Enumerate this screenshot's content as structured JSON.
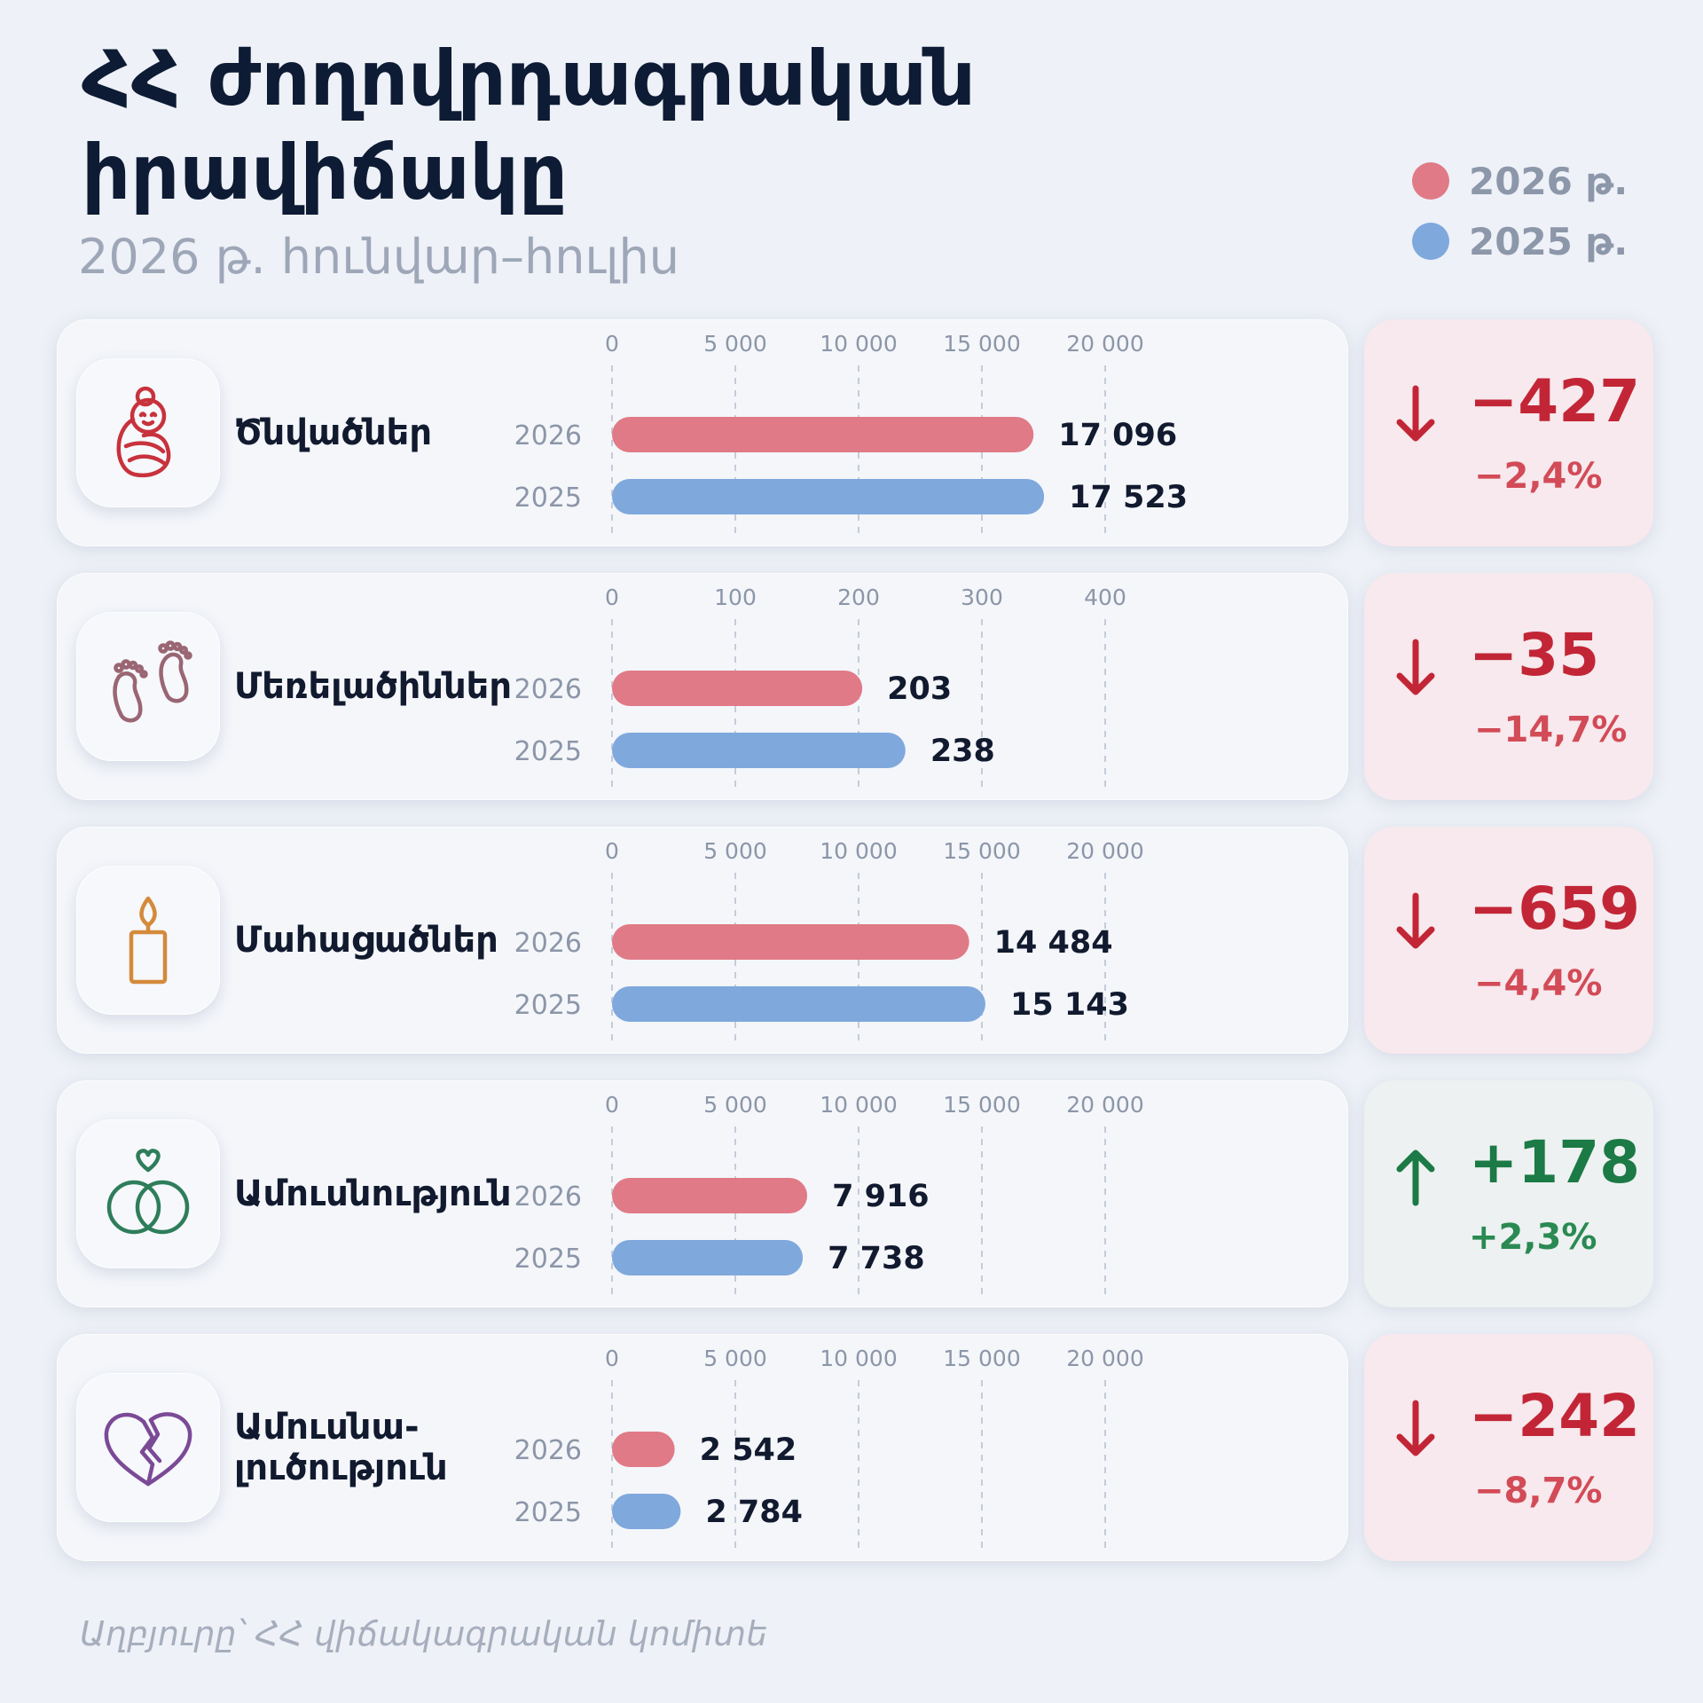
{
  "title": "ՀՀ ժողովրդագրական իրավիճակը",
  "subtitle": "2026 թ. հունվար–հուլիս",
  "legend": [
    {
      "label": "2026 թ.",
      "color": "#e07a86"
    },
    {
      "label": "2025 թ.",
      "color": "#7fa8dd"
    }
  ],
  "colors": {
    "y2026": "#e07a86",
    "y2025": "#7fa8dd",
    "negative": "#c22636",
    "positive": "#1b7a45"
  },
  "source": "Աղբյուրը՝ ՀՀ վիճակագրական կոմիտե",
  "chart_data": [
    {
      "type": "bar",
      "orientation": "horizontal",
      "category": "Ծնվածներ",
      "icon": "swaddled-baby-icon",
      "ticks": [
        "0",
        "5 000",
        "10 000",
        "15 000",
        "20 000"
      ],
      "xlim": [
        0,
        20000
      ],
      "series": [
        {
          "year": "2026",
          "value": 17096,
          "label": "17 096"
        },
        {
          "year": "2025",
          "value": 17523,
          "label": "17 523"
        }
      ],
      "change": {
        "direction": "down",
        "abs": "−427",
        "pct": "−2,4%"
      }
    },
    {
      "type": "bar",
      "orientation": "horizontal",
      "category": "Մեռելածիններ",
      "icon": "footprints-icon",
      "ticks": [
        "0",
        "100",
        "200",
        "300",
        "400"
      ],
      "xlim": [
        0,
        400
      ],
      "series": [
        {
          "year": "2026",
          "value": 203,
          "label": "203"
        },
        {
          "year": "2025",
          "value": 238,
          "label": "238"
        }
      ],
      "change": {
        "direction": "down",
        "abs": "−35",
        "pct": "−14,7%"
      }
    },
    {
      "type": "bar",
      "orientation": "horizontal",
      "category": "Մահացածներ",
      "icon": "candle-icon",
      "ticks": [
        "0",
        "5 000",
        "10 000",
        "15 000",
        "20 000"
      ],
      "xlim": [
        0,
        20000
      ],
      "series": [
        {
          "year": "2026",
          "value": 14484,
          "label": "14 484"
        },
        {
          "year": "2025",
          "value": 15143,
          "label": "15 143"
        }
      ],
      "change": {
        "direction": "down",
        "abs": "−659",
        "pct": "−4,4%"
      }
    },
    {
      "type": "bar",
      "orientation": "horizontal",
      "category": "Ամուսնություն",
      "icon": "wedding-rings-icon",
      "ticks": [
        "0",
        "5 000",
        "10 000",
        "15 000",
        "20 000"
      ],
      "xlim": [
        0,
        20000
      ],
      "series": [
        {
          "year": "2026",
          "value": 7916,
          "label": "7 916"
        },
        {
          "year": "2025",
          "value": 7738,
          "label": "7 738"
        }
      ],
      "change": {
        "direction": "up",
        "abs": "+178",
        "pct": "+2,3%"
      }
    },
    {
      "type": "bar",
      "orientation": "horizontal",
      "category": "Ամուսնա-\nլուծություն",
      "icon": "broken-heart-icon",
      "ticks": [
        "0",
        "5 000",
        "10 000",
        "15 000",
        "20 000"
      ],
      "xlim": [
        0,
        20000
      ],
      "series": [
        {
          "year": "2026",
          "value": 2542,
          "label": "2 542"
        },
        {
          "year": "2025",
          "value": 2784,
          "label": "2 784"
        }
      ],
      "change": {
        "direction": "down",
        "abs": "−242",
        "pct": "−8,7%"
      }
    }
  ]
}
